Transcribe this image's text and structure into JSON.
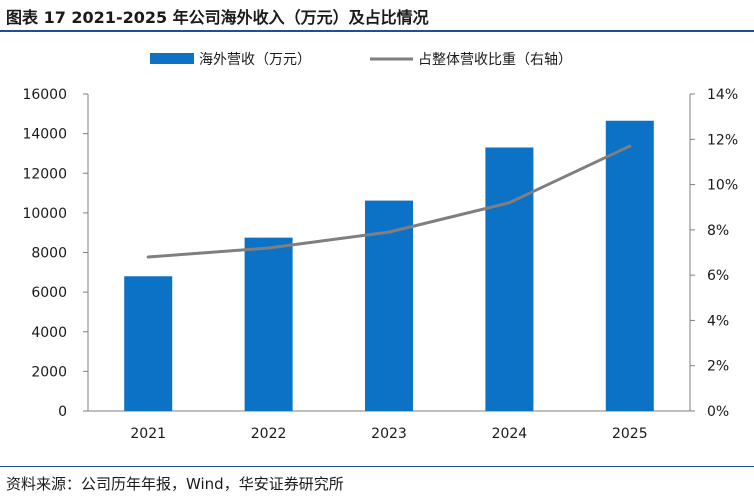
{
  "title": "图表 17 2021-2025 年公司海外收入（万元）及占比情况",
  "source": "资料来源：公司历年年报，Wind，华安证券研究所",
  "colors": {
    "bar": "#0b72c5",
    "line": "#7f7f7f",
    "axis": "#7f7f7f",
    "rule": "#1f4e9a"
  },
  "chart_data": {
    "type": "bar",
    "categories": [
      "2021",
      "2022",
      "2023",
      "2024",
      "2025"
    ],
    "series": [
      {
        "name": "海外营收（万元）",
        "type": "bar",
        "axis": "left",
        "values": [
          6800,
          8750,
          10620,
          13300,
          14650
        ]
      },
      {
        "name": "占整体营收比重（右轴）",
        "type": "line",
        "axis": "right",
        "values": [
          6.8,
          7.2,
          7.9,
          9.2,
          11.7
        ]
      }
    ],
    "y_left": {
      "min": 0,
      "max": 16000,
      "ticks": [
        "0",
        "2000",
        "4000",
        "6000",
        "8000",
        "10000",
        "12000",
        "14000",
        "16000"
      ]
    },
    "y_right": {
      "min": 0,
      "max": 14,
      "ticks": [
        "0%",
        "2%",
        "4%",
        "6%",
        "8%",
        "10%",
        "12%",
        "14%"
      ]
    },
    "legend": "top-center",
    "grid": false
  }
}
